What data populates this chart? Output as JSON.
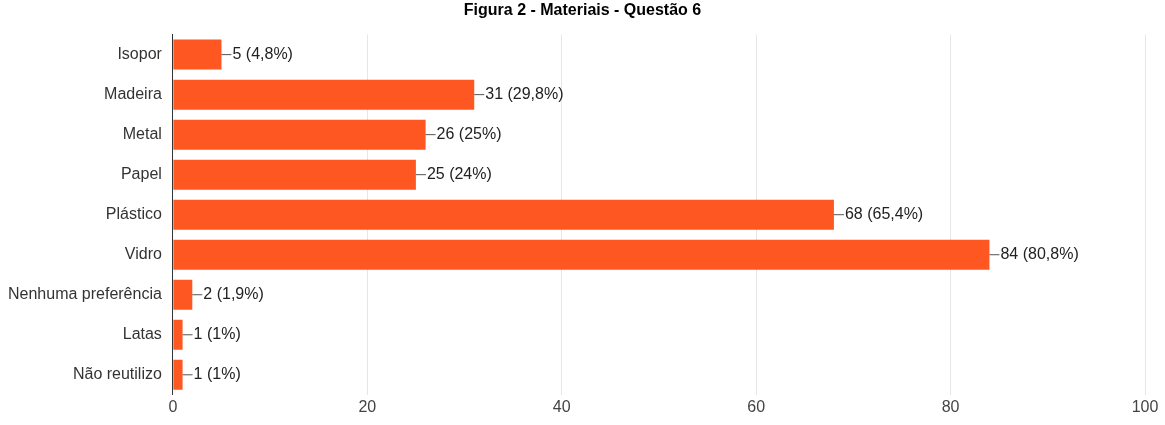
{
  "chart_data": {
    "type": "bar",
    "orientation": "horizontal",
    "title": "Figura 2 - Materiais - Questão 6",
    "categories": [
      "Isopor",
      "Madeira",
      "Metal",
      "Papel",
      "Plástico",
      "Vidro",
      "Nenhuma preferência",
      "Latas",
      "Não reutilizo"
    ],
    "values": [
      5,
      31,
      26,
      25,
      68,
      84,
      2,
      1,
      1
    ],
    "value_labels": [
      "5 (4,8%)",
      "31 (29,8%)",
      "26 (25%)",
      "25 (24%)",
      "68 (65,4%)",
      "84 (80,8%)",
      "2 (1,9%)",
      "1 (1%)",
      "1 (1%)"
    ],
    "color": "#ff5722",
    "xlim": [
      0,
      100
    ],
    "xticks": [
      0,
      20,
      40,
      60,
      80,
      100
    ],
    "grid": "x",
    "legend": false
  }
}
